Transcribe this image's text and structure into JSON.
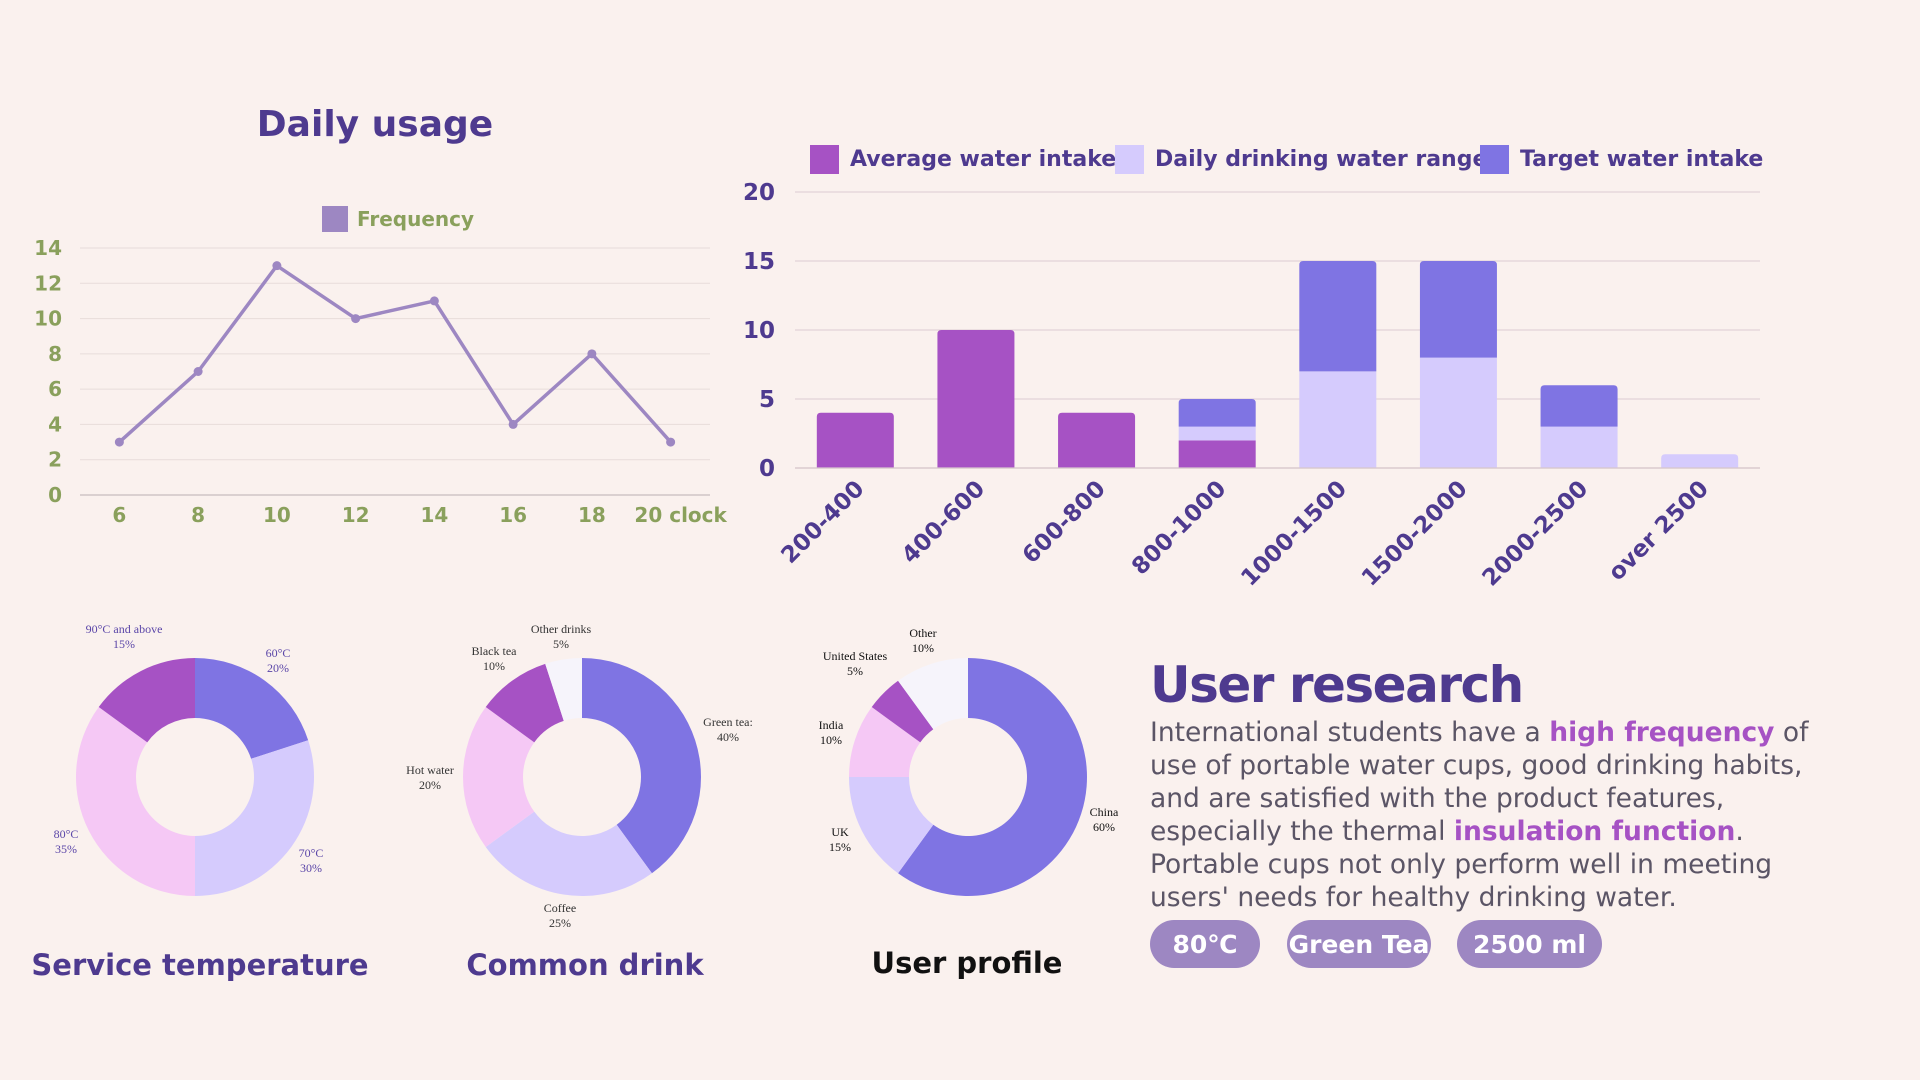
{
  "colors": {
    "title": "#4e3a8f",
    "line": "#9d87c2",
    "line_axis_text": "#8aa05c",
    "bar_purple": "#a652c4",
    "bar_lavender": "#d5cbfd",
    "bar_blue": "#7f74e3",
    "pink": "#f5c8f5",
    "tag_bg": "#9d87c2",
    "highlight": "#a652c4"
  },
  "line_chart": {
    "title": "Daily usage",
    "chart_data": {
      "type": "line",
      "categories": [
        "6",
        "8",
        "10",
        "12",
        "14",
        "16",
        "18",
        "20 clock"
      ],
      "series": [
        {
          "name": "Frequency",
          "values": [
            3,
            7,
            13,
            10,
            11,
            4,
            8,
            3
          ]
        }
      ],
      "ylim": [
        0,
        14
      ],
      "yticks": [
        "0",
        "2",
        "4",
        "6",
        "8",
        "10",
        "12",
        "14"
      ],
      "legend": "top-center",
      "grid": true
    }
  },
  "bar_chart": {
    "chart_data": {
      "type": "bar",
      "stacked": true,
      "categories": [
        "200-400",
        "400-600",
        "600-800",
        "800-1000",
        "1000-1500",
        "1500-2000",
        "2000-2500",
        "over 2500"
      ],
      "series": [
        {
          "name": "Average water intake",
          "values": [
            4,
            10,
            4,
            2,
            0,
            0,
            0,
            0
          ]
        },
        {
          "name": "Daily drinking water range",
          "values": [
            0,
            0,
            0,
            1,
            7,
            8,
            3,
            1
          ]
        },
        {
          "name": "Target water intake",
          "values": [
            0,
            0,
            0,
            2,
            8,
            7,
            3,
            0
          ]
        }
      ],
      "ylim": [
        0,
        20
      ],
      "yticks": [
        "0",
        "5",
        "10",
        "15",
        "20"
      ],
      "legend": "top",
      "grid": true
    }
  },
  "pie_temperature": {
    "title": "Service temperature",
    "chart_data": {
      "type": "pie",
      "donut": true,
      "slices": [
        {
          "label": "60°C",
          "pct": "20%",
          "value": 20
        },
        {
          "label": "70°C",
          "pct": "30%",
          "value": 30
        },
        {
          "label": "80°C",
          "pct": "35%",
          "value": 35
        },
        {
          "label": "90°C and above",
          "pct": "15%",
          "value": 15
        }
      ]
    }
  },
  "pie_drink": {
    "title": "Common drink",
    "chart_data": {
      "type": "pie",
      "donut": true,
      "slices": [
        {
          "label": "Green tea:",
          "pct": "40%",
          "value": 40
        },
        {
          "label": "Coffee",
          "pct": "25%",
          "value": 25
        },
        {
          "label": "Hot water",
          "pct": "20%",
          "value": 20
        },
        {
          "label": "Black tea",
          "pct": "10%",
          "value": 10
        },
        {
          "label": "Other drinks",
          "pct": "5%",
          "value": 5
        }
      ]
    }
  },
  "pie_profile": {
    "title": "User profile",
    "chart_data": {
      "type": "pie",
      "donut": true,
      "slices": [
        {
          "label": "China",
          "pct": "60%",
          "value": 60
        },
        {
          "label": "UK",
          "pct": "15%",
          "value": 15
        },
        {
          "label": "India",
          "pct": "10%",
          "value": 10
        },
        {
          "label": "United States",
          "pct": "5%",
          "value": 5
        },
        {
          "label": "Other",
          "pct": "10%",
          "value": 10
        }
      ]
    }
  },
  "research": {
    "heading": "User research",
    "text_1": "International students have a ",
    "highlight_1": "high frequency",
    "text_2": " of use of portable water cups, good drinking habits, and are satisfied with the product features, especially the thermal ",
    "highlight_2": "insulation function",
    "text_3": ". Portable cups not only perform well in meeting users' needs for healthy drinking water.",
    "tags": [
      "80℃",
      "Green Tea",
      "2500 ml"
    ]
  }
}
